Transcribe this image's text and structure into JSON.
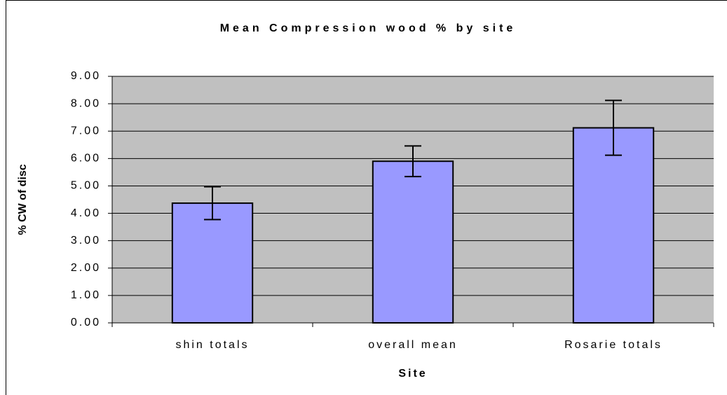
{
  "chart_data": {
    "type": "bar",
    "title": "Mean Compression wood % by site",
    "x_label": "Site",
    "y_label": "% CW of disc",
    "categories": [
      "shin totals",
      "overall mean",
      "Rosarie totals"
    ],
    "values": [
      4.37,
      5.9,
      7.12
    ],
    "errors": [
      0.6,
      0.56,
      1.0
    ],
    "color": "#9999ff",
    "ylim": [
      0,
      9
    ],
    "yticks": [
      {
        "value": 0,
        "label": "0.00"
      },
      {
        "value": 1,
        "label": "1.00"
      },
      {
        "value": 2,
        "label": "2.00"
      },
      {
        "value": 3,
        "label": "3.00"
      },
      {
        "value": 4,
        "label": "4.00"
      },
      {
        "value": 5,
        "label": "5.00"
      },
      {
        "value": 6,
        "label": "6.00"
      },
      {
        "value": 7,
        "label": "7.00"
      },
      {
        "value": 8,
        "label": "8.00"
      },
      {
        "value": 9,
        "label": "9.00"
      }
    ],
    "grid": true
  }
}
